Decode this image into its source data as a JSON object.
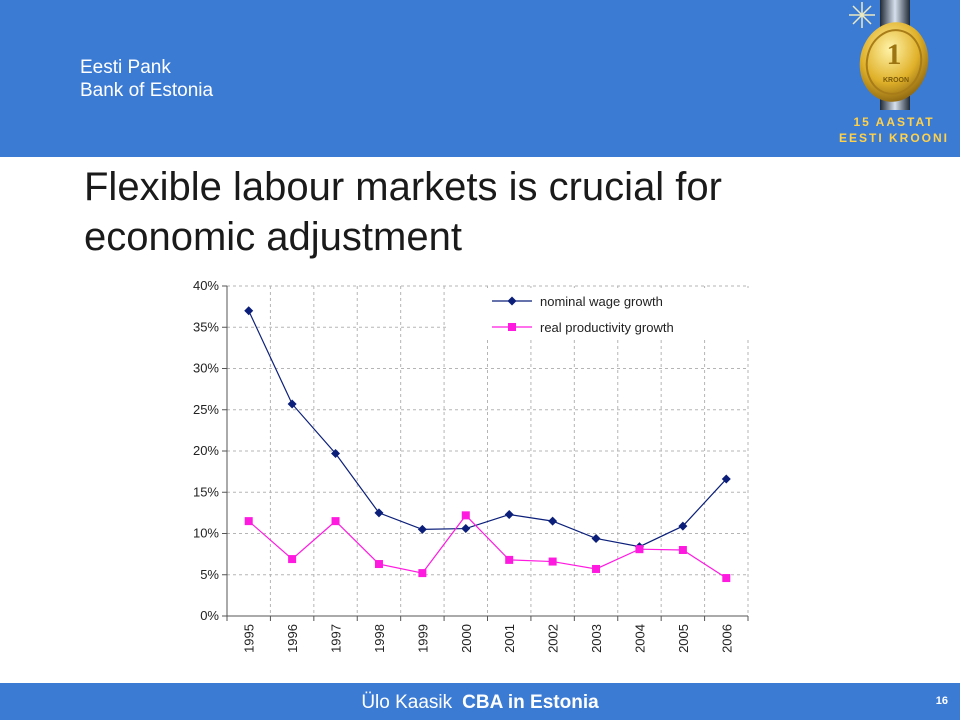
{
  "header": {
    "org_line1": "Eesti Pank",
    "org_line2": "Bank of Estonia",
    "badge_line1": "15 AASTAT",
    "badge_line2": "EESTI KROONI",
    "coin_line": "KROON",
    "bg_color": "#3c7bd4"
  },
  "slide": {
    "title_line1": "Flexible labour markets is crucial for",
    "title_line2": "economic adjustment"
  },
  "footer": {
    "author": "Ülo Kaasik",
    "topic": "CBA in Estonia",
    "page_number": "16"
  },
  "chart_data": {
    "type": "line",
    "categories": [
      "1995",
      "1996",
      "1997",
      "1998",
      "1999",
      "2000",
      "2001",
      "2002",
      "2003",
      "2004",
      "2005",
      "2006"
    ],
    "ylim": [
      0,
      0.4
    ],
    "yticks": [
      "0%",
      "5%",
      "10%",
      "15%",
      "20%",
      "25%",
      "30%",
      "35%",
      "40%"
    ],
    "grid": true,
    "legend_position": "top-right",
    "series": [
      {
        "name": "nominal wage growth",
        "color": "#0b1f7a",
        "marker": "diamond",
        "values": [
          0.37,
          0.257,
          0.197,
          0.125,
          0.105,
          0.106,
          0.123,
          0.115,
          0.094,
          0.084,
          0.109,
          0.166
        ]
      },
      {
        "name": "real productivity growth",
        "color": "#ff1ae0",
        "marker": "square",
        "values": [
          0.115,
          0.069,
          0.115,
          0.063,
          0.052,
          0.122,
          0.068,
          0.066,
          0.057,
          0.081,
          0.08,
          0.046
        ]
      }
    ]
  }
}
